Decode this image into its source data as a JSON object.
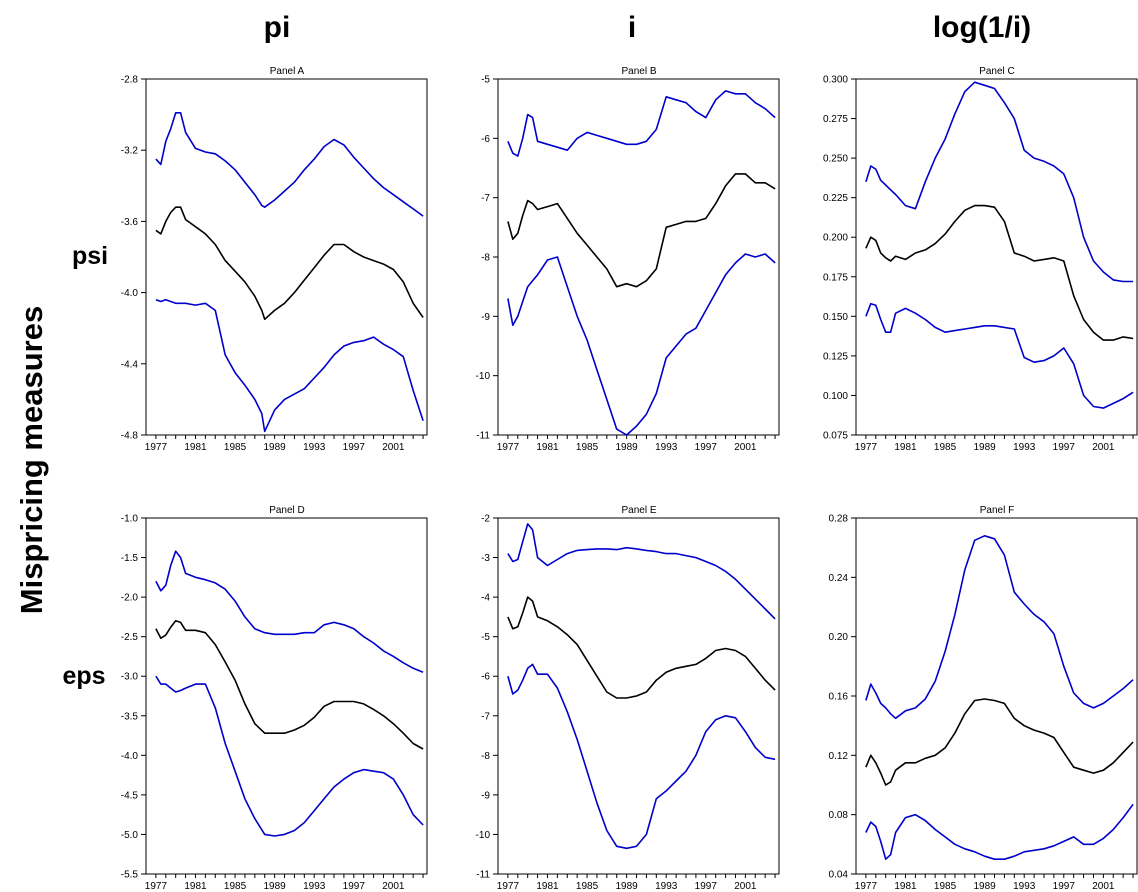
{
  "figure": {
    "column_headers": [
      "pi",
      "i",
      "log(1/i)"
    ],
    "row_headers": [
      "psi",
      "eps"
    ],
    "y_title": "Mispricing measures"
  },
  "colors": {
    "band": "#0000cc",
    "estimate": "#000000"
  },
  "chart_data": [
    {
      "type": "line",
      "title": "Panel A",
      "x_ticks": [
        "1977",
        "1981",
        "1985",
        "1989",
        "1993",
        "1997",
        "2001"
      ],
      "xlim": [
        1976,
        2004.5
      ],
      "ylim": [
        -4.8,
        -2.8
      ],
      "y_ticks": [
        "-2.8",
        "-3.2",
        "-3.6",
        "-4.0",
        "-4.4",
        "-4.8"
      ],
      "y_tick_values": [
        -2.8,
        -3.2,
        -3.6,
        -4.0,
        -4.4,
        -4.8
      ],
      "x": [
        1977,
        1977.5,
        1978,
        1978.5,
        1979,
        1979.5,
        1980,
        1981,
        1982,
        1983,
        1984,
        1985,
        1986,
        1987,
        1987.7,
        1988,
        1989,
        1990,
        1991,
        1992,
        1993,
        1994,
        1995,
        1996,
        1997,
        1998,
        1999,
        2000,
        2001,
        2002,
        2003,
        2004
      ],
      "series": [
        {
          "role": "upper",
          "color": "#0000cc",
          "values": [
            -3.25,
            -3.28,
            -3.15,
            -3.08,
            -2.99,
            -2.99,
            -3.1,
            -3.19,
            -3.21,
            -3.22,
            -3.26,
            -3.31,
            -3.38,
            -3.45,
            -3.51,
            -3.52,
            -3.48,
            -3.43,
            -3.38,
            -3.31,
            -3.25,
            -3.18,
            -3.14,
            -3.17,
            -3.24,
            -3.3,
            -3.36,
            -3.41,
            -3.45,
            -3.49,
            -3.53,
            -3.57
          ]
        },
        {
          "role": "estimate",
          "color": "#000000",
          "values": [
            -3.65,
            -3.67,
            -3.6,
            -3.55,
            -3.52,
            -3.52,
            -3.59,
            -3.63,
            -3.67,
            -3.73,
            -3.82,
            -3.88,
            -3.94,
            -4.02,
            -4.1,
            -4.15,
            -4.1,
            -4.06,
            -4.0,
            -3.93,
            -3.86,
            -3.79,
            -3.73,
            -3.73,
            -3.77,
            -3.8,
            -3.82,
            -3.84,
            -3.87,
            -3.94,
            -4.06,
            -4.14
          ]
        },
        {
          "role": "lower",
          "color": "#0000cc",
          "values": [
            -4.04,
            -4.05,
            -4.04,
            -4.05,
            -4.06,
            -4.06,
            -4.06,
            -4.07,
            -4.06,
            -4.1,
            -4.35,
            -4.45,
            -4.52,
            -4.6,
            -4.68,
            -4.78,
            -4.66,
            -4.6,
            -4.57,
            -4.54,
            -4.48,
            -4.42,
            -4.35,
            -4.3,
            -4.28,
            -4.27,
            -4.25,
            -4.29,
            -4.32,
            -4.36,
            -4.55,
            -4.72
          ]
        }
      ]
    },
    {
      "type": "line",
      "title": "Panel B",
      "x_ticks": [
        "1977",
        "1981",
        "1985",
        "1989",
        "1993",
        "1997",
        "2001"
      ],
      "xlim": [
        1976,
        2004.5
      ],
      "ylim": [
        -11,
        -5
      ],
      "y_ticks": [
        "-5",
        "-6",
        "-7",
        "-8",
        "-9",
        "-10",
        "-11"
      ],
      "y_tick_values": [
        -5,
        -6,
        -7,
        -8,
        -9,
        -10,
        -11
      ],
      "x": [
        1977,
        1977.5,
        1978,
        1978.5,
        1979,
        1979.5,
        1980,
        1981,
        1982,
        1983,
        1984,
        1985,
        1986,
        1987,
        1988,
        1989,
        1990,
        1991,
        1992,
        1993,
        1994,
        1995,
        1996,
        1997,
        1998,
        1999,
        2000,
        2001,
        2002,
        2003,
        2004
      ],
      "series": [
        {
          "role": "upper",
          "color": "#0000cc",
          "values": [
            -6.05,
            -6.25,
            -6.3,
            -6.0,
            -5.6,
            -5.65,
            -6.05,
            -6.1,
            -6.15,
            -6.2,
            -6.0,
            -5.9,
            -5.95,
            -6.0,
            -6.05,
            -6.1,
            -6.1,
            -6.05,
            -5.85,
            -5.3,
            -5.35,
            -5.4,
            -5.55,
            -5.65,
            -5.35,
            -5.2,
            -5.25,
            -5.25,
            -5.4,
            -5.5,
            -5.65
          ]
        },
        {
          "role": "estimate",
          "color": "#000000",
          "values": [
            -7.4,
            -7.7,
            -7.6,
            -7.3,
            -7.05,
            -7.1,
            -7.2,
            -7.15,
            -7.1,
            -7.35,
            -7.6,
            -7.8,
            -8.0,
            -8.2,
            -8.5,
            -8.45,
            -8.5,
            -8.4,
            -8.2,
            -7.5,
            -7.45,
            -7.4,
            -7.4,
            -7.35,
            -7.1,
            -6.8,
            -6.6,
            -6.6,
            -6.75,
            -6.75,
            -6.85
          ]
        },
        {
          "role": "lower",
          "color": "#0000cc",
          "values": [
            -8.7,
            -9.15,
            -9.0,
            -8.75,
            -8.5,
            -8.4,
            -8.3,
            -8.05,
            -8.0,
            -8.5,
            -9.0,
            -9.4,
            -9.9,
            -10.4,
            -10.9,
            -11.0,
            -10.85,
            -10.65,
            -10.3,
            -9.7,
            -9.5,
            -9.3,
            -9.2,
            -8.9,
            -8.6,
            -8.3,
            -8.1,
            -7.95,
            -8.0,
            -7.95,
            -8.1
          ]
        }
      ]
    },
    {
      "type": "line",
      "title": "Panel C",
      "x_ticks": [
        "1977",
        "1981",
        "1985",
        "1989",
        "1993",
        "1997",
        "2001"
      ],
      "xlim": [
        1976,
        2004.5
      ],
      "ylim": [
        0.075,
        0.3
      ],
      "y_ticks": [
        "0.300",
        "0.275",
        "0.250",
        "0.225",
        "0.200",
        "0.175",
        "0.150",
        "0.125",
        "0.100",
        "0.075"
      ],
      "y_tick_values": [
        0.3,
        0.275,
        0.25,
        0.225,
        0.2,
        0.175,
        0.15,
        0.125,
        0.1,
        0.075
      ],
      "x": [
        1977,
        1977.5,
        1978,
        1978.5,
        1979,
        1979.5,
        1980,
        1981,
        1982,
        1983,
        1984,
        1985,
        1986,
        1987,
        1988,
        1989,
        1990,
        1991,
        1992,
        1993,
        1994,
        1995,
        1996,
        1997,
        1998,
        1999,
        2000,
        2001,
        2002,
        2003,
        2004
      ],
      "series": [
        {
          "role": "upper",
          "color": "#0000cc",
          "values": [
            0.235,
            0.245,
            0.243,
            0.236,
            0.233,
            0.23,
            0.227,
            0.22,
            0.218,
            0.235,
            0.25,
            0.262,
            0.278,
            0.292,
            0.298,
            0.296,
            0.294,
            0.285,
            0.275,
            0.255,
            0.25,
            0.248,
            0.245,
            0.24,
            0.225,
            0.2,
            0.185,
            0.178,
            0.173,
            0.172,
            0.172
          ]
        },
        {
          "role": "estimate",
          "color": "#000000",
          "values": [
            0.193,
            0.2,
            0.198,
            0.19,
            0.187,
            0.185,
            0.188,
            0.186,
            0.19,
            0.192,
            0.196,
            0.202,
            0.21,
            0.217,
            0.22,
            0.22,
            0.219,
            0.21,
            0.19,
            0.188,
            0.185,
            0.186,
            0.187,
            0.185,
            0.163,
            0.148,
            0.14,
            0.135,
            0.135,
            0.137,
            0.136
          ]
        },
        {
          "role": "lower",
          "color": "#0000cc",
          "values": [
            0.15,
            0.158,
            0.157,
            0.148,
            0.14,
            0.14,
            0.152,
            0.155,
            0.152,
            0.148,
            0.143,
            0.14,
            0.141,
            0.142,
            0.143,
            0.144,
            0.144,
            0.143,
            0.142,
            0.124,
            0.121,
            0.122,
            0.125,
            0.13,
            0.12,
            0.1,
            0.093,
            0.092,
            0.095,
            0.098,
            0.102
          ]
        }
      ]
    },
    {
      "type": "line",
      "title": "Panel D",
      "x_ticks": [
        "1977",
        "1981",
        "1985",
        "1989",
        "1993",
        "1997",
        "2001"
      ],
      "xlim": [
        1976,
        2004.5
      ],
      "ylim": [
        -5.5,
        -1.0
      ],
      "y_ticks": [
        "-1.0",
        "-1.5",
        "-2.0",
        "-2.5",
        "-3.0",
        "-3.5",
        "-4.0",
        "-4.5",
        "-5.0",
        "-5.5"
      ],
      "y_tick_values": [
        -1.0,
        -1.5,
        -2.0,
        -2.5,
        -3.0,
        -3.5,
        -4.0,
        -4.5,
        -5.0,
        -5.5
      ],
      "x": [
        1977,
        1977.5,
        1978,
        1978.5,
        1979,
        1979.5,
        1980,
        1981,
        1982,
        1983,
        1984,
        1985,
        1986,
        1987,
        1988,
        1989,
        1990,
        1991,
        1992,
        1993,
        1994,
        1995,
        1996,
        1997,
        1998,
        1999,
        2000,
        2001,
        2002,
        2003,
        2004
      ],
      "series": [
        {
          "role": "upper",
          "color": "#0000cc",
          "values": [
            -1.8,
            -1.92,
            -1.85,
            -1.6,
            -1.42,
            -1.5,
            -1.7,
            -1.75,
            -1.78,
            -1.82,
            -1.9,
            -2.05,
            -2.25,
            -2.4,
            -2.45,
            -2.47,
            -2.47,
            -2.47,
            -2.45,
            -2.45,
            -2.35,
            -2.32,
            -2.35,
            -2.4,
            -2.5,
            -2.58,
            -2.68,
            -2.75,
            -2.83,
            -2.9,
            -2.95
          ]
        },
        {
          "role": "estimate",
          "color": "#000000",
          "values": [
            -2.4,
            -2.52,
            -2.48,
            -2.38,
            -2.3,
            -2.32,
            -2.42,
            -2.42,
            -2.45,
            -2.6,
            -2.82,
            -3.05,
            -3.35,
            -3.6,
            -3.72,
            -3.72,
            -3.72,
            -3.68,
            -3.62,
            -3.52,
            -3.38,
            -3.32,
            -3.32,
            -3.32,
            -3.35,
            -3.42,
            -3.5,
            -3.6,
            -3.72,
            -3.85,
            -3.92
          ]
        },
        {
          "role": "lower",
          "color": "#0000cc",
          "values": [
            -3.0,
            -3.1,
            -3.1,
            -3.15,
            -3.2,
            -3.18,
            -3.15,
            -3.1,
            -3.1,
            -3.4,
            -3.85,
            -4.2,
            -4.55,
            -4.8,
            -5.0,
            -5.02,
            -5.0,
            -4.95,
            -4.85,
            -4.7,
            -4.55,
            -4.4,
            -4.3,
            -4.22,
            -4.18,
            -4.2,
            -4.22,
            -4.3,
            -4.5,
            -4.75,
            -4.88
          ]
        }
      ]
    },
    {
      "type": "line",
      "title": "Panel E",
      "x_ticks": [
        "1977",
        "1981",
        "1985",
        "1989",
        "1993",
        "1997",
        "2001"
      ],
      "xlim": [
        1976,
        2004.5
      ],
      "ylim": [
        -11,
        -2
      ],
      "y_ticks": [
        "-2",
        "-3",
        "-4",
        "-5",
        "-6",
        "-7",
        "-8",
        "-9",
        "-10",
        "-11"
      ],
      "y_tick_values": [
        -2,
        -3,
        -4,
        -5,
        -6,
        -7,
        -8,
        -9,
        -10,
        -11
      ],
      "x": [
        1977,
        1977.5,
        1978,
        1978.5,
        1979,
        1979.5,
        1980,
        1981,
        1982,
        1983,
        1984,
        1985,
        1986,
        1987,
        1988,
        1989,
        1990,
        1991,
        1992,
        1993,
        1994,
        1995,
        1996,
        1997,
        1998,
        1999,
        2000,
        2001,
        2002,
        2003,
        2004
      ],
      "series": [
        {
          "role": "upper",
          "color": "#0000cc",
          "values": [
            -2.9,
            -3.1,
            -3.05,
            -2.6,
            -2.15,
            -2.3,
            -3.0,
            -3.2,
            -3.05,
            -2.9,
            -2.82,
            -2.8,
            -2.78,
            -2.78,
            -2.8,
            -2.75,
            -2.78,
            -2.82,
            -2.85,
            -2.9,
            -2.9,
            -2.95,
            -3.0,
            -3.1,
            -3.2,
            -3.35,
            -3.55,
            -3.8,
            -4.05,
            -4.3,
            -4.55
          ]
        },
        {
          "role": "estimate",
          "color": "#000000",
          "values": [
            -4.5,
            -4.8,
            -4.75,
            -4.4,
            -4.0,
            -4.1,
            -4.5,
            -4.6,
            -4.75,
            -4.95,
            -5.2,
            -5.6,
            -6.0,
            -6.4,
            -6.55,
            -6.55,
            -6.5,
            -6.4,
            -6.1,
            -5.9,
            -5.8,
            -5.75,
            -5.7,
            -5.55,
            -5.35,
            -5.3,
            -5.35,
            -5.5,
            -5.8,
            -6.1,
            -6.35
          ]
        },
        {
          "role": "lower",
          "color": "#0000cc",
          "values": [
            -6.0,
            -6.45,
            -6.35,
            -6.1,
            -5.8,
            -5.7,
            -5.95,
            -5.95,
            -6.3,
            -6.9,
            -7.6,
            -8.4,
            -9.2,
            -9.9,
            -10.3,
            -10.35,
            -10.3,
            -10.0,
            -9.1,
            -8.9,
            -8.65,
            -8.4,
            -8.0,
            -7.4,
            -7.1,
            -7.0,
            -7.05,
            -7.4,
            -7.8,
            -8.05,
            -8.1
          ]
        }
      ]
    },
    {
      "type": "line",
      "title": "Panel F",
      "x_ticks": [
        "1977",
        "1981",
        "1985",
        "1989",
        "1993",
        "1997",
        "2001"
      ],
      "xlim": [
        1976,
        2004.5
      ],
      "ylim": [
        0.04,
        0.28
      ],
      "y_ticks": [
        "0.28",
        "0.24",
        "0.20",
        "0.16",
        "0.12",
        "0.08",
        "0.04"
      ],
      "y_tick_values": [
        0.28,
        0.24,
        0.2,
        0.16,
        0.12,
        0.08,
        0.04
      ],
      "x": [
        1977,
        1977.5,
        1978,
        1978.5,
        1979,
        1979.5,
        1980,
        1981,
        1982,
        1983,
        1984,
        1985,
        1986,
        1987,
        1988,
        1989,
        1990,
        1991,
        1992,
        1993,
        1994,
        1995,
        1996,
        1997,
        1998,
        1999,
        2000,
        2001,
        2002,
        2003,
        2004
      ],
      "series": [
        {
          "role": "upper",
          "color": "#0000cc",
          "values": [
            0.157,
            0.168,
            0.162,
            0.155,
            0.152,
            0.148,
            0.145,
            0.15,
            0.152,
            0.158,
            0.17,
            0.19,
            0.215,
            0.245,
            0.265,
            0.268,
            0.266,
            0.255,
            0.23,
            0.222,
            0.215,
            0.21,
            0.202,
            0.18,
            0.162,
            0.155,
            0.152,
            0.155,
            0.16,
            0.165,
            0.171
          ]
        },
        {
          "role": "estimate",
          "color": "#000000",
          "values": [
            0.112,
            0.12,
            0.115,
            0.108,
            0.1,
            0.102,
            0.11,
            0.115,
            0.115,
            0.118,
            0.12,
            0.125,
            0.135,
            0.148,
            0.157,
            0.158,
            0.157,
            0.155,
            0.145,
            0.14,
            0.137,
            0.135,
            0.132,
            0.122,
            0.112,
            0.11,
            0.108,
            0.11,
            0.115,
            0.122,
            0.129
          ]
        },
        {
          "role": "lower",
          "color": "#0000cc",
          "values": [
            0.068,
            0.075,
            0.072,
            0.062,
            0.05,
            0.053,
            0.068,
            0.078,
            0.08,
            0.076,
            0.07,
            0.065,
            0.06,
            0.057,
            0.055,
            0.052,
            0.05,
            0.05,
            0.052,
            0.055,
            0.056,
            0.057,
            0.059,
            0.062,
            0.065,
            0.06,
            0.06,
            0.064,
            0.07,
            0.078,
            0.087
          ]
        }
      ]
    }
  ]
}
